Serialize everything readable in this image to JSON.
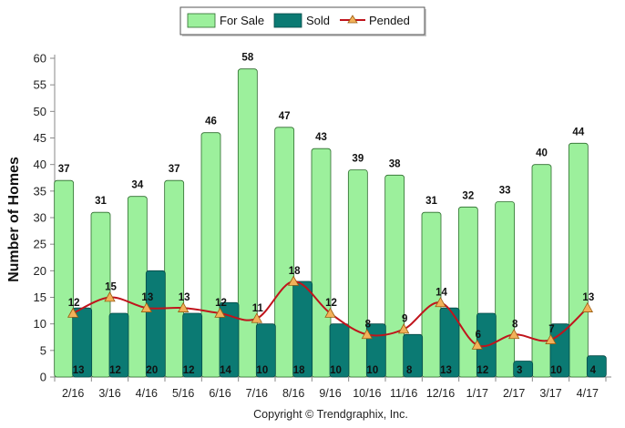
{
  "chart_data": {
    "type": "bar",
    "categories": [
      "2/16",
      "3/16",
      "4/16",
      "5/16",
      "6/16",
      "7/16",
      "8/16",
      "9/16",
      "10/16",
      "11/16",
      "12/16",
      "1/17",
      "2/17",
      "3/17",
      "4/17"
    ],
    "series": [
      {
        "name": "For Sale",
        "type": "bar",
        "color": "#9cf09c",
        "values": [
          37,
          31,
          34,
          37,
          46,
          58,
          47,
          43,
          39,
          38,
          31,
          32,
          33,
          40,
          44
        ]
      },
      {
        "name": "Sold",
        "type": "bar",
        "color": "#0b7a73",
        "values": [
          13,
          12,
          20,
          12,
          14,
          10,
          18,
          10,
          10,
          8,
          13,
          12,
          3,
          10,
          4
        ]
      },
      {
        "name": "Pended",
        "type": "line",
        "color": "#c0141c",
        "marker_color": "#f2b15a",
        "values": [
          12,
          15,
          13,
          13,
          12,
          11,
          18,
          12,
          8,
          9,
          14,
          6,
          8,
          7,
          13
        ]
      }
    ],
    "ylabel": "Number of Homes",
    "xlabel": "",
    "ylim": [
      0,
      60
    ],
    "yticks": [
      0,
      5,
      10,
      15,
      20,
      25,
      30,
      35,
      40,
      45,
      50,
      55,
      60
    ],
    "grid": false,
    "legend_position": "top-center"
  },
  "copyright": "Copyright © Trendgraphix, Inc."
}
